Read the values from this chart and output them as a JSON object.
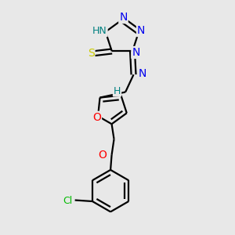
{
  "bg_color": "#e8e8e8",
  "atom_colors": {
    "N": "#0000ee",
    "S": "#cccc00",
    "O": "#ff0000",
    "Cl": "#00bb00",
    "C": "#000000",
    "H": "#008080"
  },
  "lw": 1.6
}
